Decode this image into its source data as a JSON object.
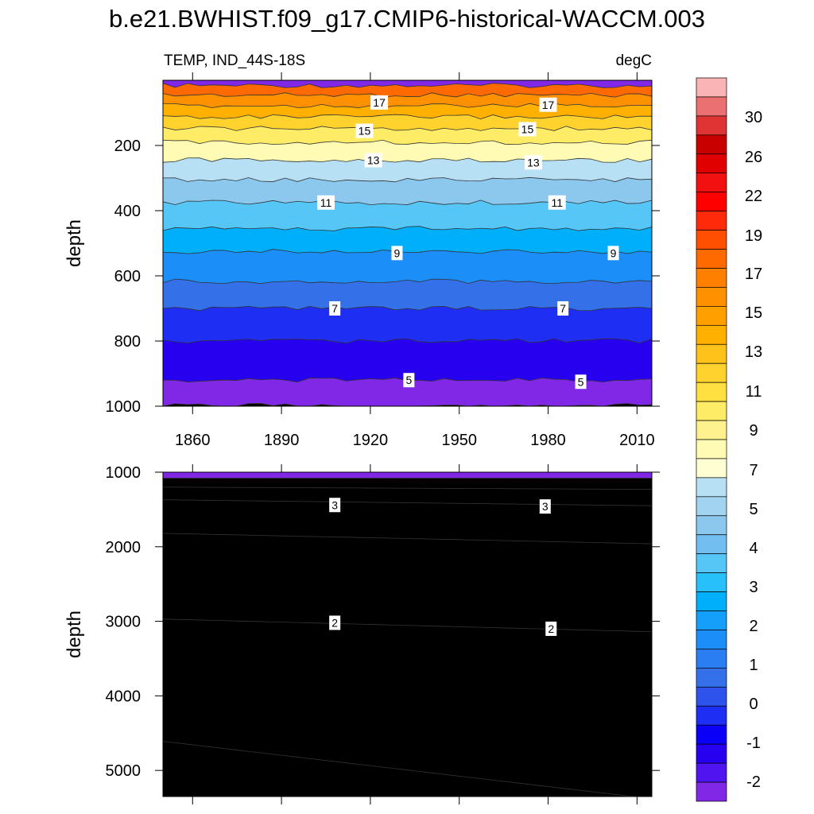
{
  "title": "b.e21.BWHIST.f09_g17.CMIP6-historical-WACCM.003",
  "subtitle_left": "TEMP, IND_44S-18S",
  "subtitle_right": "degC",
  "chart_data": [
    {
      "type": "heatmap",
      "panel": "upper",
      "ylabel": "depth",
      "x_ticks": [
        1860,
        1890,
        1920,
        1950,
        1980,
        2010
      ],
      "xlim": [
        1850,
        2015
      ],
      "y_ticks": [
        200,
        400,
        600,
        800,
        1000
      ],
      "ylim": [
        0,
        1000
      ],
      "y_inverted": true,
      "isotherm_depths": [
        {
          "temp": 19,
          "depth": 16
        },
        {
          "temp": 18,
          "depth": 45
        },
        {
          "temp": 17,
          "depth": 78
        },
        {
          "temp": 16,
          "depth": 112
        },
        {
          "temp": 15,
          "depth": 148
        },
        {
          "temp": 14,
          "depth": 190
        },
        {
          "temp": 13,
          "depth": 245
        },
        {
          "temp": 12,
          "depth": 305
        },
        {
          "temp": 11,
          "depth": 375
        },
        {
          "temp": 10,
          "depth": 455
        },
        {
          "temp": 9,
          "depth": 525
        },
        {
          "temp": 8,
          "depth": 617
        },
        {
          "temp": 7,
          "depth": 700
        },
        {
          "temp": 6,
          "depth": 800
        },
        {
          "temp": 5,
          "depth": 920
        },
        {
          "temp": 4.5,
          "depth": 998
        }
      ],
      "contour_labels": [
        {
          "text": "17",
          "year": 1923,
          "depth": 68
        },
        {
          "text": "17",
          "year": 1980,
          "depth": 75
        },
        {
          "text": "15",
          "year": 1918,
          "depth": 155
        },
        {
          "text": "15",
          "year": 1973,
          "depth": 150
        },
        {
          "text": "13",
          "year": 1921,
          "depth": 245
        },
        {
          "text": "13",
          "year": 1975,
          "depth": 252
        },
        {
          "text": "11",
          "year": 1905,
          "depth": 375
        },
        {
          "text": "11",
          "year": 1983,
          "depth": 375
        },
        {
          "text": "9",
          "year": 1929,
          "depth": 530
        },
        {
          "text": "9",
          "year": 2002,
          "depth": 530
        },
        {
          "text": "7",
          "year": 1908,
          "depth": 700
        },
        {
          "text": "7",
          "year": 1985,
          "depth": 700
        },
        {
          "text": "5",
          "year": 1933,
          "depth": 920
        },
        {
          "text": "5",
          "year": 1991,
          "depth": 925
        }
      ]
    },
    {
      "type": "heatmap",
      "panel": "lower",
      "ylabel": "depth",
      "xlim": [
        1850,
        2015
      ],
      "y_ticks": [
        1000,
        2000,
        3000,
        4000,
        5000
      ],
      "ylim": [
        1000,
        5350
      ],
      "y_inverted": true,
      "isotherm_depths": [
        {
          "temp": 4,
          "depth": 1080,
          "depth_end": 1080
        },
        {
          "temp": 3.5,
          "depth": 1200,
          "depth_end": 1230
        },
        {
          "temp": 3,
          "depth": 1370,
          "depth_end": 1450
        },
        {
          "temp": 2.5,
          "depth": 1820,
          "depth_end": 1960
        },
        {
          "temp": 2,
          "depth": 2970,
          "depth_end": 3140
        },
        {
          "temp": 1.5,
          "depth": 4610,
          "depth_end": 5380
        }
      ],
      "contour_labels": [
        {
          "text": "3",
          "year": 1908,
          "depth": 1440
        },
        {
          "text": "3",
          "year": 1979,
          "depth": 1460
        },
        {
          "text": "2",
          "year": 1908,
          "depth": 3020
        },
        {
          "text": "2",
          "year": 1981,
          "depth": 3100
        }
      ]
    }
  ],
  "colorbar": {
    "tick_labels": [
      "30",
      "26",
      "22",
      "19",
      "17",
      "15",
      "13",
      "11",
      "9",
      "7",
      "5",
      "4",
      "3",
      "2",
      "1",
      "0",
      "-1",
      "-2"
    ],
    "colors_top_to_bottom": [
      "#FBB4B6",
      "#EB7072",
      "#DE3434",
      "#C80000",
      "#E00000",
      "#F21010",
      "#FF0000",
      "#FF2A0A",
      "#FF4F00",
      "#FF6A00",
      "#FF7F00",
      "#FF9000",
      "#FFA000",
      "#FFB000",
      "#FFC21A",
      "#FFD22D",
      "#FFE040",
      "#FFEC66",
      "#FFF28E",
      "#FFFBB4",
      "#FFFFD2",
      "#B8E0F4",
      "#A2D4F0",
      "#8CC8EE",
      "#72BEF0",
      "#56C6F6",
      "#28C0FA",
      "#00AFFA",
      "#14A0FA",
      "#1C8EF8",
      "#2A7EF2",
      "#3470E8",
      "#2E52EC",
      "#1E2EF2",
      "#0A00F8",
      "#2800F0",
      "#5014F0",
      "#8028E6"
    ]
  }
}
